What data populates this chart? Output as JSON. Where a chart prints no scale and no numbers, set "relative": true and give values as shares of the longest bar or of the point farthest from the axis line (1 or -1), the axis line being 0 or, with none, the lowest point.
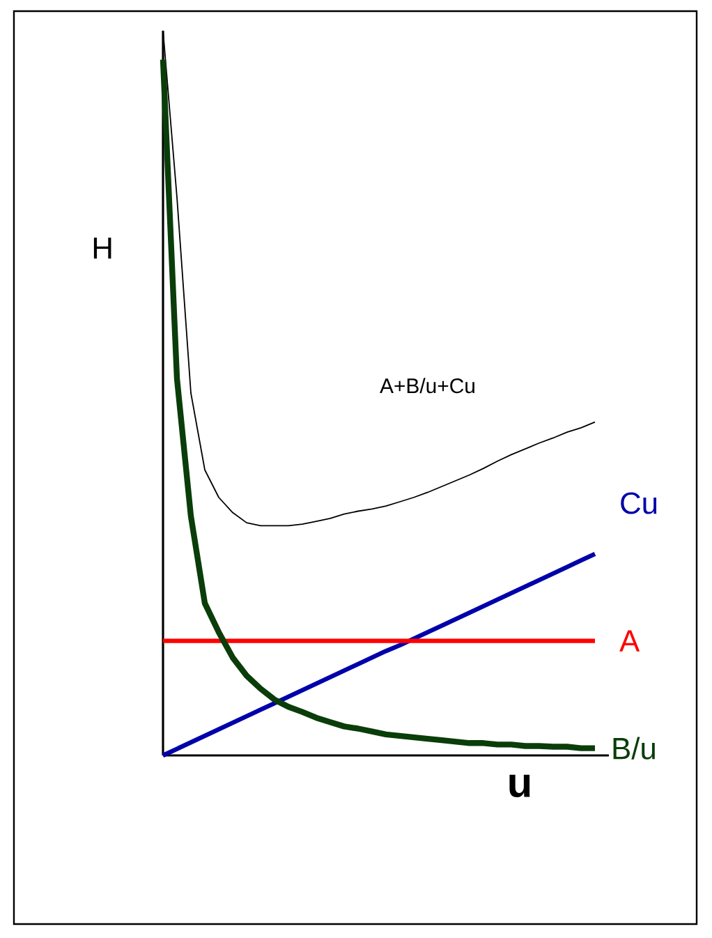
{
  "chart_data": {
    "type": "line",
    "relative": true,
    "xlabel": "u",
    "ylabel": "H",
    "marker": "none",
    "line_style": "solid",
    "categories": [
      null,
      null,
      null,
      null,
      null,
      null,
      null,
      null,
      null,
      null,
      null,
      null,
      null,
      null,
      null,
      null,
      null,
      null,
      null,
      null,
      null,
      null,
      null,
      null,
      null,
      null,
      null,
      null,
      null,
      null,
      null,
      null
    ],
    "series": [
      {
        "name": "A+B/u+Cu",
        "color": "#000000",
        "values": [
          1,
          0.77,
          0.5,
          0.394,
          0.356,
          0.335,
          0.321,
          0.317,
          0.317,
          0.317,
          0.319,
          0.323,
          0.327,
          0.333,
          0.337,
          0.34,
          0.344,
          0.35,
          0.356,
          0.363,
          0.371,
          0.379,
          0.387,
          0.396,
          0.406,
          0.415,
          0.423,
          0.431,
          0.438,
          0.446,
          0.452,
          0.46
        ]
      },
      {
        "name": "Cu",
        "color": "#0000aa",
        "values": [
          0,
          0.009,
          0.018,
          0.027,
          0.036,
          0.045,
          0.054,
          0.063,
          0.072,
          0.081,
          0.09,
          0.099,
          0.108,
          0.117,
          0.126,
          0.135,
          0.144,
          0.152,
          0.161,
          0.17,
          0.179,
          0.188,
          0.197,
          0.206,
          0.215,
          0.224,
          0.233,
          0.242,
          0.251,
          0.26,
          0.269,
          0.278
        ]
      },
      {
        "name": "A",
        "color": "#ff0000",
        "values": [
          0.158,
          0.158,
          0.158,
          0.158,
          0.158,
          0.158,
          0.158,
          0.158,
          0.158,
          0.158,
          0.158,
          0.158,
          0.158,
          0.158,
          0.158,
          0.158,
          0.158,
          0.158,
          0.158,
          0.158,
          0.158,
          0.158,
          0.158,
          0.158,
          0.158,
          0.158,
          0.158,
          0.158,
          0.158,
          0.158,
          0.158,
          0.158
        ]
      },
      {
        "name": "B/u",
        "color": "#0a3d0a",
        "values": [
          0.96,
          0.52,
          0.33,
          0.21,
          0.17,
          0.135,
          0.11,
          0.092,
          0.077,
          0.067,
          0.06,
          0.052,
          0.046,
          0.04,
          0.037,
          0.033,
          0.029,
          0.027,
          0.025,
          0.023,
          0.021,
          0.019,
          0.017,
          0.017,
          0.015,
          0.015,
          0.013,
          0.013,
          0.012,
          0.012,
          0.01,
          0.01
        ]
      }
    ]
  }
}
